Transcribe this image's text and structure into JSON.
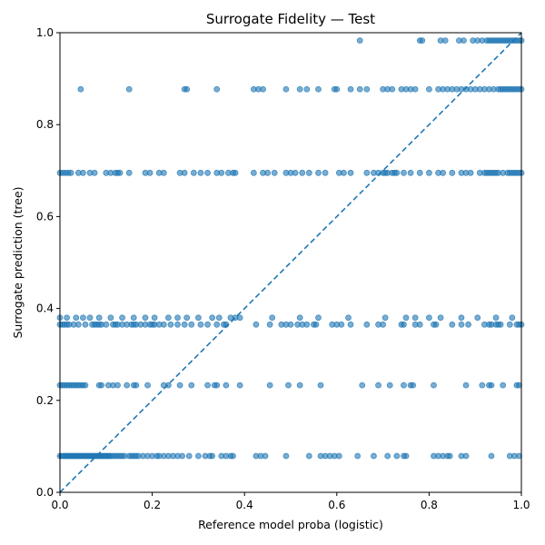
{
  "chart_data": {
    "type": "scatter",
    "title": "Surrogate Fidelity — Test",
    "xlabel": "Reference model proba (logistic)",
    "ylabel": "Surrogate prediction (tree)",
    "xlim": [
      0,
      1
    ],
    "ylim": [
      0,
      1
    ],
    "xticks": [
      "0.0",
      "0.2",
      "0.4",
      "0.6",
      "0.8",
      "1.0"
    ],
    "yticks": [
      "0.0",
      "0.2",
      "0.4",
      "0.6",
      "0.8",
      "1.0"
    ],
    "grid": false,
    "legend": "none",
    "point_color": "#1f77b4",
    "reference_line": {
      "style": "dashed",
      "color": "#1f77b4",
      "from": [
        0,
        0
      ],
      "to": [
        1,
        1
      ]
    },
    "series": [
      {
        "y": 0.079,
        "x": [
          0.0,
          0.004,
          0.008,
          0.011,
          0.014,
          0.017,
          0.02,
          0.023,
          0.026,
          0.029,
          0.032,
          0.035,
          0.038,
          0.041,
          0.044,
          0.047,
          0.05,
          0.053,
          0.056,
          0.059,
          0.062,
          0.065,
          0.068,
          0.071,
          0.074,
          0.077,
          0.08,
          0.083,
          0.086,
          0.089,
          0.092,
          0.095,
          0.098,
          0.101,
          0.104,
          0.107,
          0.11,
          0.115,
          0.12,
          0.125,
          0.13,
          0.135,
          0.14,
          0.15,
          0.155,
          0.16,
          0.165,
          0.17,
          0.18,
          0.19,
          0.2,
          0.21,
          0.215,
          0.225,
          0.235,
          0.245,
          0.255,
          0.265,
          0.28,
          0.3,
          0.315,
          0.325,
          0.33,
          0.35,
          0.36,
          0.37,
          0.375,
          0.425,
          0.435,
          0.445,
          0.49,
          0.54,
          0.565,
          0.575,
          0.585,
          0.595,
          0.605,
          0.645,
          0.68,
          0.71,
          0.73,
          0.745,
          0.75,
          0.81,
          0.82,
          0.83,
          0.84,
          0.845,
          0.87,
          0.88,
          0.935,
          0.975,
          0.985,
          0.995
        ]
      },
      {
        "y": 0.233,
        "x": [
          0.0,
          0.005,
          0.01,
          0.015,
          0.02,
          0.025,
          0.03,
          0.035,
          0.04,
          0.045,
          0.05,
          0.055,
          0.085,
          0.09,
          0.105,
          0.115,
          0.125,
          0.145,
          0.16,
          0.165,
          0.19,
          0.225,
          0.235,
          0.26,
          0.285,
          0.32,
          0.335,
          0.34,
          0.36,
          0.39,
          0.455,
          0.495,
          0.52,
          0.565,
          0.655,
          0.69,
          0.715,
          0.745,
          0.76,
          0.765,
          0.81,
          0.88,
          0.915,
          0.93,
          0.935,
          0.96,
          0.99,
          0.995
        ]
      },
      {
        "y": 0.365,
        "x": [
          0.0,
          0.005,
          0.01,
          0.015,
          0.02,
          0.03,
          0.04,
          0.055,
          0.07,
          0.075,
          0.08,
          0.085,
          0.09,
          0.1,
          0.115,
          0.12,
          0.125,
          0.135,
          0.145,
          0.155,
          0.16,
          0.165,
          0.175,
          0.185,
          0.195,
          0.2,
          0.205,
          0.215,
          0.225,
          0.24,
          0.255,
          0.27,
          0.285,
          0.305,
          0.32,
          0.34,
          0.355,
          0.36,
          0.425,
          0.455,
          0.48,
          0.49,
          0.5,
          0.515,
          0.525,
          0.535,
          0.55,
          0.555,
          0.59,
          0.6,
          0.61,
          0.63,
          0.665,
          0.69,
          0.7,
          0.74,
          0.745,
          0.77,
          0.78,
          0.81,
          0.815,
          0.85,
          0.87,
          0.885,
          0.92,
          0.93,
          0.935,
          0.945,
          0.95,
          0.955,
          0.975,
          0.99,
          0.995,
          1.0
        ]
      },
      {
        "y": 0.38,
        "x": [
          0.0,
          0.015,
          0.035,
          0.05,
          0.065,
          0.085,
          0.11,
          0.135,
          0.16,
          0.185,
          0.205,
          0.235,
          0.255,
          0.275,
          0.3,
          0.33,
          0.345,
          0.37,
          0.38,
          0.39,
          0.46,
          0.52,
          0.56,
          0.625,
          0.705,
          0.75,
          0.77,
          0.8,
          0.825,
          0.87,
          0.905,
          0.945,
          0.98
        ]
      },
      {
        "y": 0.695,
        "x": [
          0.0,
          0.006,
          0.012,
          0.018,
          0.024,
          0.04,
          0.05,
          0.065,
          0.075,
          0.1,
          0.11,
          0.12,
          0.125,
          0.13,
          0.15,
          0.185,
          0.195,
          0.215,
          0.225,
          0.26,
          0.27,
          0.29,
          0.305,
          0.32,
          0.34,
          0.35,
          0.365,
          0.375,
          0.38,
          0.42,
          0.44,
          0.45,
          0.465,
          0.49,
          0.5,
          0.51,
          0.525,
          0.54,
          0.56,
          0.575,
          0.605,
          0.615,
          0.63,
          0.665,
          0.68,
          0.69,
          0.7,
          0.705,
          0.71,
          0.72,
          0.725,
          0.73,
          0.745,
          0.76,
          0.78,
          0.8,
          0.82,
          0.83,
          0.85,
          0.87,
          0.88,
          0.89,
          0.91,
          0.92,
          0.925,
          0.93,
          0.935,
          0.94,
          0.945,
          0.95,
          0.96,
          0.97,
          0.975,
          0.98,
          0.985,
          0.99,
          0.995,
          1.0
        ]
      },
      {
        "y": 0.877,
        "x": [
          0.045,
          0.15,
          0.27,
          0.275,
          0.34,
          0.42,
          0.43,
          0.44,
          0.49,
          0.52,
          0.535,
          0.56,
          0.595,
          0.6,
          0.63,
          0.65,
          0.665,
          0.7,
          0.71,
          0.72,
          0.74,
          0.75,
          0.76,
          0.77,
          0.8,
          0.82,
          0.83,
          0.84,
          0.85,
          0.86,
          0.87,
          0.88,
          0.89,
          0.9,
          0.91,
          0.92,
          0.93,
          0.94,
          0.95,
          0.955,
          0.96,
          0.965,
          0.97,
          0.975,
          0.98,
          0.985,
          0.99,
          0.995,
          1.0
        ]
      },
      {
        "y": 0.983,
        "x": [
          0.65,
          0.78,
          0.785,
          0.825,
          0.835,
          0.865,
          0.875,
          0.895,
          0.905,
          0.915,
          0.925,
          0.93,
          0.935,
          0.94,
          0.945,
          0.95,
          0.955,
          0.96,
          0.965,
          0.97,
          0.975,
          0.98,
          0.985,
          0.99,
          0.995,
          1.0
        ]
      }
    ]
  }
}
